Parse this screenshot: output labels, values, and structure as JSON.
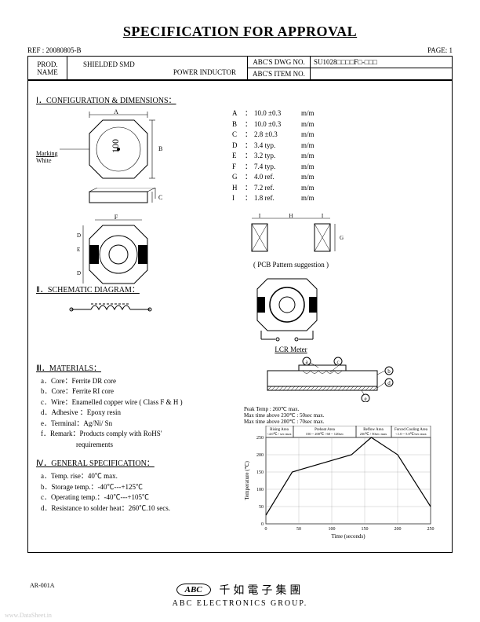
{
  "title": "SPECIFICATION FOR APPROVAL",
  "ref": "REF : 20080805-B",
  "page": "PAGE: 1",
  "info": {
    "prod_label": "PROD.\nNAME",
    "prod_name_top": "SHIELDED SMD",
    "prod_name_bottom": "POWER INDUCTOR",
    "dwg_label": "ABC'S DWG NO.",
    "dwg_val": "SU1028□□□□F□-□□□",
    "item_label": "ABC'S ITEM NO.",
    "item_val": ""
  },
  "sec1": {
    "heading": "Ⅰ．CONFIGURATION & DIMENSIONS：",
    "marking_label": "Marking",
    "marking_color": "White",
    "marking_text": "100",
    "dims": [
      {
        "sym": "A",
        "val": "10.0 ±0.3",
        "unit": "m/m"
      },
      {
        "sym": "B",
        "val": "10.0 ±0.3",
        "unit": "m/m"
      },
      {
        "sym": "C",
        "val": "2.8 ±0.3",
        "unit": "m/m"
      },
      {
        "sym": "D",
        "val": "3.4 typ.",
        "unit": "m/m"
      },
      {
        "sym": "E",
        "val": "3.2 typ.",
        "unit": "m/m"
      },
      {
        "sym": "F",
        "val": "7.4 typ.",
        "unit": "m/m"
      },
      {
        "sym": "G",
        "val": "4.0 ref.",
        "unit": "m/m"
      },
      {
        "sym": "H",
        "val": "7.2 ref.",
        "unit": "m/m"
      },
      {
        "sym": "I",
        "val": "1.8 ref.",
        "unit": "m/m"
      }
    ],
    "pcb_caption": "( PCB Pattern suggestion )",
    "pcb_labels": {
      "I": "I",
      "H": "H",
      "G": "G"
    }
  },
  "sec2": {
    "heading": "Ⅱ．SCHEMATIC DIAGRAM：",
    "lcr_label": "LCR Meter"
  },
  "sec3": {
    "heading": "Ⅲ．MATERIALS：",
    "items": [
      "a．Core：Ferrite DR core",
      "b．Core：Ferrite RI core",
      "c．Wire：Enamelled copper wire ( Class F & H )",
      "d．Adhesive ：Epoxy resin",
      "e．Terminal：Ag/Ni/ Sn",
      "f．Remark：Products comply with RoHS'",
      "　　　　　requirements"
    ],
    "profile": {
      "peak": "Peak Temp : 260℃ max.",
      "t230": "Max time above 230℃ : 50sec max.",
      "t200": "Max time above 200℃ : 70sec max.",
      "zones": [
        "Rising Area",
        "Preheat Area",
        "Reflow Area",
        "Forced Cooling Area"
      ],
      "zone_details": [
        "<4.0℃ / sec max",
        "150 ~ 200℃ / 60 ~ 120sec",
        "230℃ / 50sec max",
        "<1.0 ~ 5.0℃/sec max"
      ],
      "ylabel": "Temperature (℃)",
      "xlabel": "Time (seconds)",
      "yticks": [
        0,
        50,
        100,
        150,
        200,
        250
      ],
      "xticks": [
        0,
        50,
        100,
        150,
        200,
        250
      ],
      "line_points": [
        [
          0,
          25
        ],
        [
          40,
          150
        ],
        [
          130,
          200
        ],
        [
          160,
          250
        ],
        [
          200,
          200
        ],
        [
          250,
          50
        ]
      ],
      "line_color": "#000000",
      "grid_color": "#999999"
    },
    "callouts": [
      "a",
      "b",
      "c",
      "d",
      "e"
    ]
  },
  "sec4": {
    "heading": "Ⅳ．GENERAL SPECIFICATION：",
    "items": [
      "a．Temp. rise：40℃ max.",
      "b．Storage temp.：-40℃---+125℃",
      "c．Operating temp.：-40℃---+105℃",
      "d．Resistance to solder heat：260℃.10 secs."
    ]
  },
  "footer": {
    "logo": "ABC",
    "cjk": "千如電子集團",
    "en": "ABC ELECTRONICS GROUP.",
    "ar": "AR-001A"
  },
  "watermark": "www.DataSheet.in"
}
